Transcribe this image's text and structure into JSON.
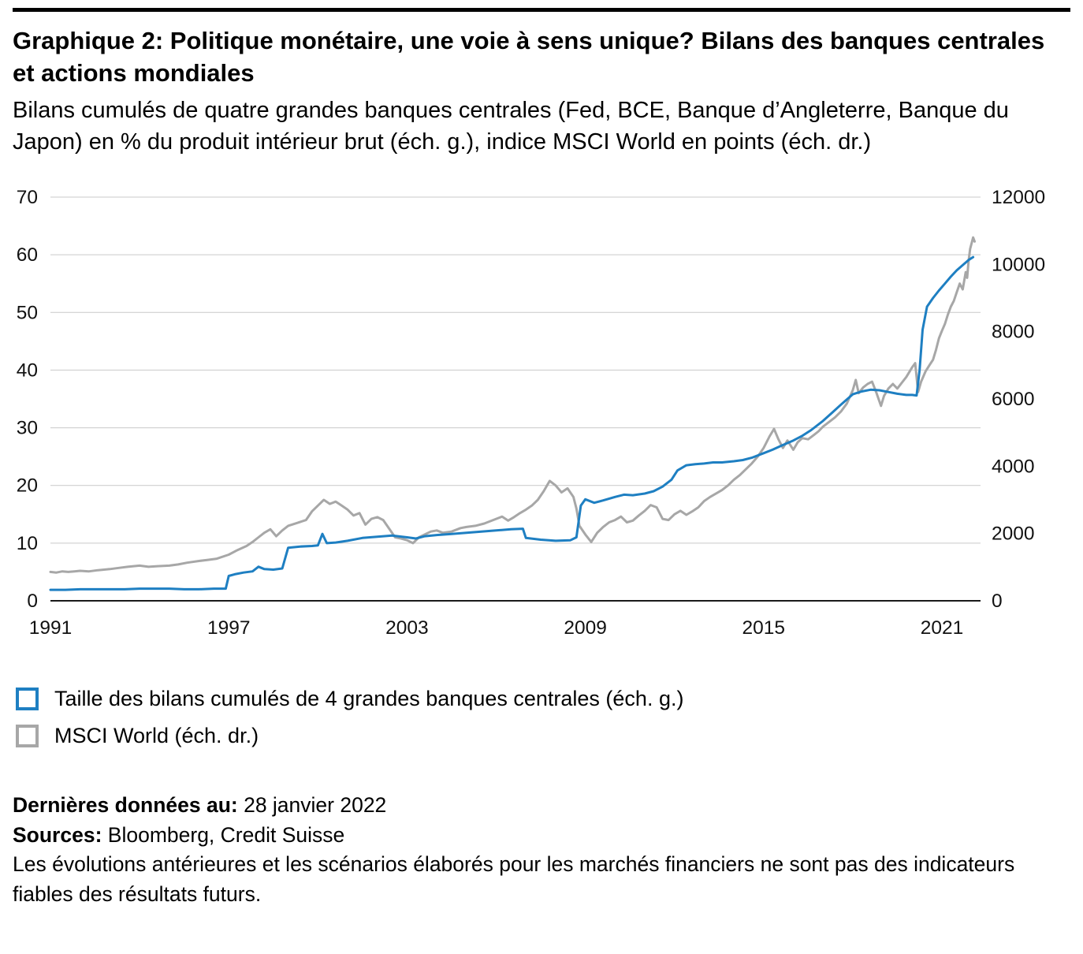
{
  "header": {
    "title": "Graphique 2: Politique monétaire, une voie à sens unique? Bilans des banques centrales et actions mondiales",
    "subtitle": "Bilans cumulés de quatre grandes banques centrales (Fed, BCE, Banque d’Angleterre, Banque du Japon) en % du produit intérieur brut (éch. g.), indice MSCI World en points (éch. dr.)"
  },
  "footer": {
    "last_data_label": "Dernières données au:",
    "last_data_value": "28 janvier 2022",
    "sources_label": "Sources:",
    "sources_value": "Bloomberg, Credit Suisse",
    "disclaimer": "Les évolutions antérieures et les scénarios élaborés pour les marchés financiers ne sont pas des indicateurs fiables des résultats futurs."
  },
  "chart_data": {
    "type": "line",
    "title": "Politique monétaire, une voie à sens unique? Bilans des banques centrales et actions mondiales",
    "x_ticks": [
      1991,
      1997,
      2003,
      2009,
      2015,
      2021
    ],
    "xlim": [
      1991,
      2022.3
    ],
    "grid": true,
    "legend_position": "bottom-left",
    "left_axis": {
      "min": 0,
      "max": 70,
      "step": 10,
      "label": "Bilans cumulés en % du PIB (éch. g.)"
    },
    "right_axis": {
      "min": 0,
      "max": 12000,
      "step": 2000,
      "label": "Indice MSCI World en points (éch. dr.)"
    },
    "series": [
      {
        "name": "Taille des bilans cumulés de 4 grandes banques centrales (éch. g.)",
        "axis": "left",
        "color": "#1e7fc2",
        "x": [
          1991.0,
          1991.5,
          1992.0,
          1992.5,
          1993.0,
          1993.5,
          1994.0,
          1994.5,
          1995.0,
          1995.5,
          1996.0,
          1996.5,
          1996.9,
          1997.0,
          1997.2,
          1997.5,
          1997.8,
          1998.0,
          1998.2,
          1998.5,
          1998.8,
          1999.0,
          1999.4,
          1999.8,
          2000.0,
          2000.15,
          2000.3,
          2000.6,
          2001.0,
          2001.5,
          2002.0,
          2002.5,
          2003.0,
          2003.3,
          2003.6,
          2004.0,
          2004.5,
          2005.0,
          2005.5,
          2006.0,
          2006.5,
          2006.9,
          2007.0,
          2007.5,
          2008.0,
          2008.5,
          2008.7,
          2008.85,
          2009.0,
          2009.3,
          2009.6,
          2010.0,
          2010.3,
          2010.6,
          2011.0,
          2011.3,
          2011.6,
          2011.9,
          2012.1,
          2012.4,
          2012.7,
          2013.0,
          2013.3,
          2013.6,
          2014.0,
          2014.3,
          2014.6,
          2015.0,
          2015.3,
          2015.6,
          2016.0,
          2016.3,
          2016.6,
          2017.0,
          2017.3,
          2017.6,
          2018.0,
          2018.3,
          2018.6,
          2018.9,
          2019.2,
          2019.5,
          2019.8,
          2020.0,
          2020.15,
          2020.25,
          2020.35,
          2020.5,
          2020.7,
          2020.9,
          2021.1,
          2021.3,
          2021.5,
          2021.7,
          2021.9,
          2022.05
        ],
        "y": [
          1.9,
          1.9,
          2.0,
          2.0,
          2.0,
          2.0,
          2.1,
          2.1,
          2.1,
          2.0,
          2.0,
          2.1,
          2.1,
          4.3,
          4.6,
          4.9,
          5.1,
          5.9,
          5.5,
          5.4,
          5.6,
          9.2,
          9.4,
          9.5,
          9.6,
          11.6,
          10.0,
          10.1,
          10.4,
          10.9,
          11.1,
          11.3,
          11.0,
          10.8,
          11.2,
          11.4,
          11.6,
          11.8,
          12.0,
          12.2,
          12.4,
          12.5,
          10.9,
          10.6,
          10.4,
          10.5,
          11.0,
          16.5,
          17.6,
          17.0,
          17.4,
          18.0,
          18.4,
          18.3,
          18.6,
          19.0,
          19.8,
          21.0,
          22.6,
          23.5,
          23.7,
          23.8,
          24.0,
          24.0,
          24.2,
          24.4,
          24.8,
          25.6,
          26.2,
          26.9,
          27.8,
          28.6,
          29.6,
          31.2,
          32.6,
          34.0,
          35.8,
          36.3,
          36.6,
          36.5,
          36.2,
          35.9,
          35.7,
          35.7,
          35.6,
          40.0,
          47.0,
          51.0,
          52.5,
          53.8,
          55.0,
          56.2,
          57.3,
          58.2,
          59.1,
          59.6
        ]
      },
      {
        "name": "MSCI World (éch. dr.)",
        "axis": "right",
        "color": "#a7a7a7",
        "x": [
          1991.0,
          1991.2,
          1991.4,
          1991.6,
          1991.8,
          1992.0,
          1992.3,
          1992.6,
          1993.0,
          1993.3,
          1993.6,
          1994.0,
          1994.3,
          1994.6,
          1995.0,
          1995.3,
          1995.6,
          1996.0,
          1996.3,
          1996.6,
          1997.0,
          1997.3,
          1997.6,
          1997.8,
          1998.0,
          1998.2,
          1998.4,
          1998.6,
          1998.8,
          1999.0,
          1999.3,
          1999.6,
          1999.8,
          2000.0,
          2000.2,
          2000.4,
          2000.6,
          2000.8,
          2001.0,
          2001.2,
          2001.4,
          2001.6,
          2001.8,
          2002.0,
          2002.2,
          2002.4,
          2002.6,
          2002.8,
          2003.0,
          2003.2,
          2003.4,
          2003.6,
          2003.8,
          2004.0,
          2004.2,
          2004.5,
          2004.8,
          2005.0,
          2005.3,
          2005.6,
          2006.0,
          2006.2,
          2006.4,
          2006.6,
          2006.8,
          2007.0,
          2007.2,
          2007.4,
          2007.6,
          2007.8,
          2008.0,
          2008.2,
          2008.4,
          2008.6,
          2008.7,
          2008.8,
          2009.0,
          2009.2,
          2009.4,
          2009.6,
          2009.8,
          2010.0,
          2010.2,
          2010.4,
          2010.6,
          2010.8,
          2011.0,
          2011.2,
          2011.4,
          2011.6,
          2011.8,
          2012.0,
          2012.2,
          2012.4,
          2012.6,
          2012.8,
          2013.0,
          2013.2,
          2013.4,
          2013.6,
          2013.8,
          2014.0,
          2014.2,
          2014.4,
          2014.6,
          2014.8,
          2015.0,
          2015.2,
          2015.35,
          2015.5,
          2015.65,
          2015.8,
          2016.0,
          2016.15,
          2016.3,
          2016.5,
          2016.7,
          2016.85,
          2017.0,
          2017.2,
          2017.4,
          2017.6,
          2017.8,
          2018.0,
          2018.1,
          2018.2,
          2018.35,
          2018.5,
          2018.65,
          2018.8,
          2018.95,
          2019.05,
          2019.2,
          2019.35,
          2019.5,
          2019.65,
          2019.8,
          2020.0,
          2020.1,
          2020.2,
          2020.3,
          2020.45,
          2020.6,
          2020.7,
          2020.8,
          2020.9,
          2021.0,
          2021.1,
          2021.2,
          2021.3,
          2021.4,
          2021.5,
          2021.6,
          2021.7,
          2021.8,
          2021.85,
          2021.9,
          2021.95,
          2022.0,
          2022.05,
          2022.1
        ],
        "y": [
          857,
          840,
          874,
          857,
          874,
          891,
          874,
          909,
          943,
          977,
          1011,
          1046,
          1011,
          1029,
          1046,
          1080,
          1131,
          1183,
          1217,
          1251,
          1371,
          1509,
          1629,
          1749,
          1886,
          2023,
          2126,
          1920,
          2091,
          2229,
          2314,
          2400,
          2657,
          2829,
          3000,
          2880,
          2949,
          2829,
          2709,
          2537,
          2606,
          2263,
          2434,
          2486,
          2400,
          2143,
          1886,
          1851,
          1800,
          1714,
          1886,
          1971,
          2057,
          2091,
          2023,
          2057,
          2160,
          2194,
          2229,
          2297,
          2434,
          2503,
          2383,
          2486,
          2606,
          2709,
          2829,
          3000,
          3257,
          3566,
          3429,
          3223,
          3343,
          3086,
          2743,
          2229,
          1971,
          1749,
          2023,
          2194,
          2331,
          2400,
          2503,
          2331,
          2383,
          2537,
          2674,
          2846,
          2777,
          2434,
          2400,
          2571,
          2674,
          2554,
          2657,
          2777,
          2966,
          3086,
          3189,
          3291,
          3429,
          3600,
          3737,
          3909,
          4080,
          4286,
          4543,
          4886,
          5109,
          4800,
          4543,
          4766,
          4491,
          4714,
          4834,
          4800,
          4937,
          5040,
          5177,
          5314,
          5451,
          5623,
          5863,
          6257,
          6566,
          6171,
          6343,
          6446,
          6514,
          6171,
          5794,
          6086,
          6309,
          6446,
          6309,
          6480,
          6651,
          6943,
          7063,
          6206,
          6514,
          6823,
          7029,
          7166,
          7457,
          7800,
          8023,
          8229,
          8503,
          8743,
          8914,
          9171,
          9429,
          9257,
          9771,
          9600,
          10114,
          10457,
          10629,
          10800,
          10680
        ]
      }
    ]
  }
}
